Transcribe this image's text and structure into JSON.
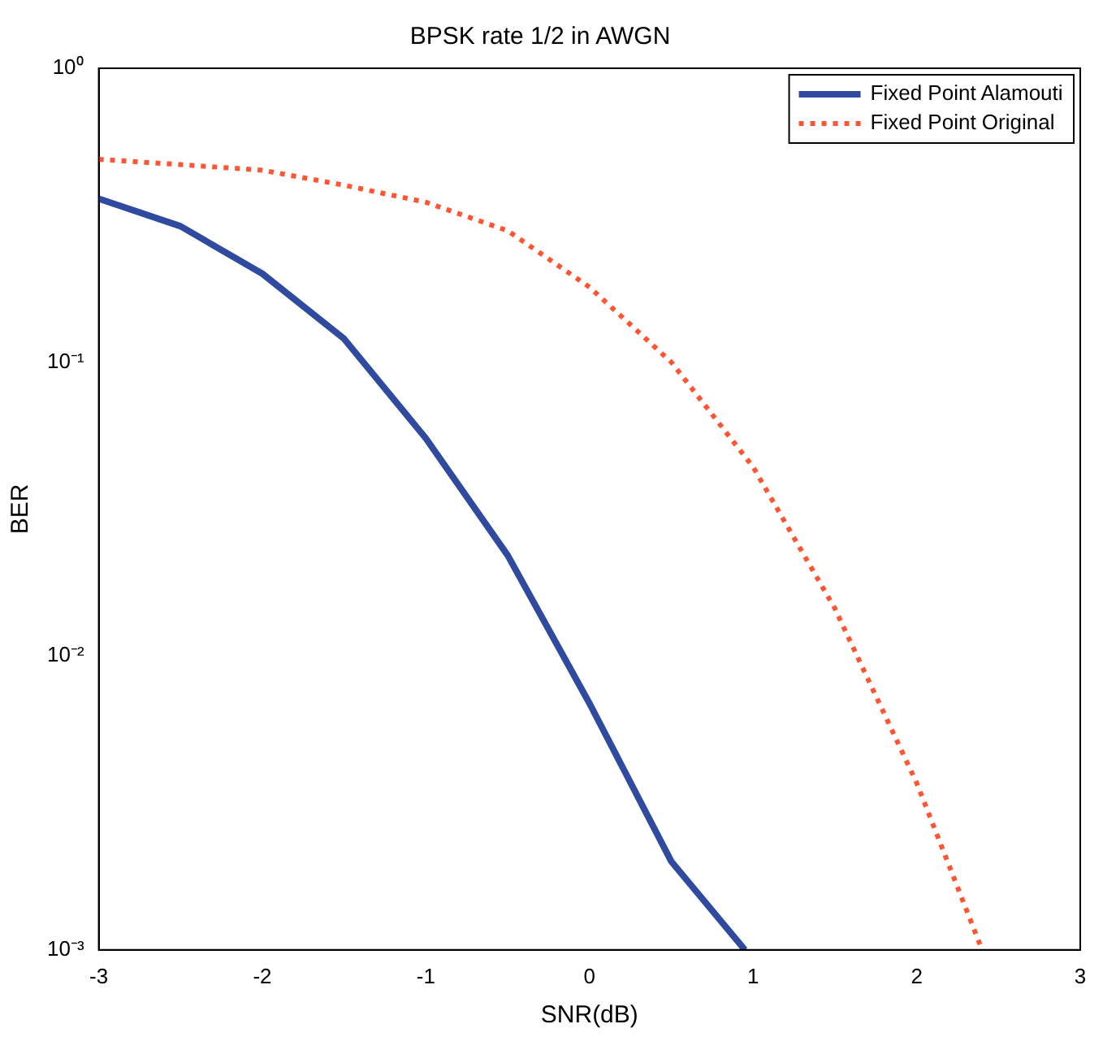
{
  "chart_data": {
    "type": "line",
    "title": "BPSK rate 1/2 in AWGN",
    "xlabel": "SNR(dB)",
    "ylabel": "BER",
    "log": "y",
    "grid": false,
    "legend": "top right",
    "marker": "none",
    "xlim": [
      -3,
      3
    ],
    "xticks": [
      -3,
      -2,
      -1,
      0,
      1,
      2,
      3
    ],
    "ylim": [
      0.001,
      1
    ],
    "yticks": [
      {
        "value": 0.001,
        "label": "10⁻³"
      },
      {
        "value": 0.01,
        "label": "10⁻²"
      },
      {
        "value": 0.1,
        "label": "10⁻¹"
      },
      {
        "value": 1,
        "label": "10⁰"
      }
    ],
    "series": [
      {
        "name": "Fixed Point Alamouti",
        "color": "#2f4a9e",
        "line_style": "solid",
        "x": [
          -3,
          -2.5,
          -2,
          -1.5,
          -1,
          -0.5,
          0,
          0.5,
          0.95
        ],
        "values": [
          0.36,
          0.29,
          0.2,
          0.12,
          0.055,
          0.022,
          0.0069,
          0.002,
          0.001
        ]
      },
      {
        "name": "Fixed Point Original",
        "color": "#ff5533",
        "line_style": "dotted",
        "x": [
          -3,
          -2.5,
          -2,
          -1.5,
          -1,
          -0.5,
          0,
          0.5,
          1,
          1.5,
          2,
          2.4
        ],
        "values": [
          0.49,
          0.47,
          0.45,
          0.4,
          0.35,
          0.28,
          0.18,
          0.1,
          0.044,
          0.0145,
          0.0037,
          0.001
        ]
      }
    ]
  }
}
